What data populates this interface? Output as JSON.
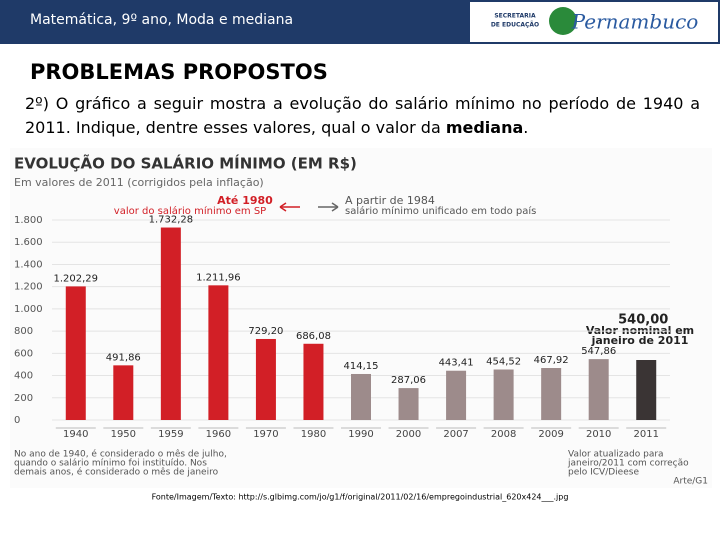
{
  "header": {
    "title": "Matemática, 9º ano, Moda e mediana",
    "logo_secretaria": [
      "SECRETARIA",
      "DE EDUCAÇÃO"
    ],
    "logo_state": "Pernambuco"
  },
  "section_title": "PROBLEMAS PROPOSTOS",
  "question_parts": [
    "2º) O gráfico a seguir mostra a evolução do salário mínimo no período de 1940 a 2011. Indique, dentre esses valores, qual o valor da ",
    "mediana",
    "."
  ],
  "source": "Fonte/Imagem/Texto: http://s.glbimg.com/jo/g1/f/original/2011/02/16/empregoindustrial_620x424___.jpg",
  "chart_data": {
    "type": "bar",
    "title": "EVOLUÇÃO DO SALÁRIO MÍNIMO (EM R$)",
    "subtitle": "Em valores de 2011 (corrigidos pela inflação)",
    "annotations": {
      "left_title": "Até 1980",
      "left_text": "valor do salário mínimo em SP",
      "right_title": "A partir de 1984",
      "right_text": "salário mínimo unificado em todo país",
      "last_note": [
        "Valor nominal em",
        "janeiro de 2011"
      ]
    },
    "notes_left": [
      "No ano de 1940, é considerado o mês de julho,",
      "quando o salário mínimo foi instituído. Nos",
      "demais anos, é considerado o mês de janeiro"
    ],
    "notes_right": [
      "Valor atualizado para",
      "janeiro/2011 com correção",
      "pelo ICV/Dieese"
    ],
    "credit": "Arte/G1",
    "categories": [
      "1940",
      "1950",
      "1959",
      "1960",
      "1970",
      "1980",
      "1990",
      "2000",
      "2007",
      "2008",
      "2009",
      "2010",
      "2011"
    ],
    "values": [
      1202.29,
      491.86,
      1732.28,
      1211.96,
      729.2,
      686.08,
      414.15,
      287.06,
      443.41,
      454.52,
      467.92,
      547.86,
      540.0
    ],
    "value_labels": [
      "1.202,29",
      "491,86",
      "1.732,28",
      "1.211,96",
      "729,20",
      "686,08",
      "414,15",
      "287,06",
      "443,41",
      "454,52",
      "467,92",
      "547,86",
      "540,00"
    ],
    "colors": [
      "#d21f26",
      "#d21f26",
      "#d21f26",
      "#d21f26",
      "#d21f26",
      "#d21f26",
      "#9d8b8b",
      "#9d8b8b",
      "#9d8b8b",
      "#9d8b8b",
      "#9d8b8b",
      "#9d8b8b",
      "#3a3434"
    ],
    "ylim": [
      0,
      1800
    ],
    "yticks": [
      0,
      200,
      400,
      600,
      {
        "value": 800,
        "label": "800"
      },
      {
        "value": 1000,
        "label": "1.000"
      },
      {
        "value": 1200,
        "label": "1.200"
      },
      {
        "value": 1400,
        "label": "1.400"
      },
      {
        "value": 1600,
        "label": "1.600"
      },
      {
        "value": 1800,
        "label": "1.800"
      }
    ],
    "grid": true
  }
}
